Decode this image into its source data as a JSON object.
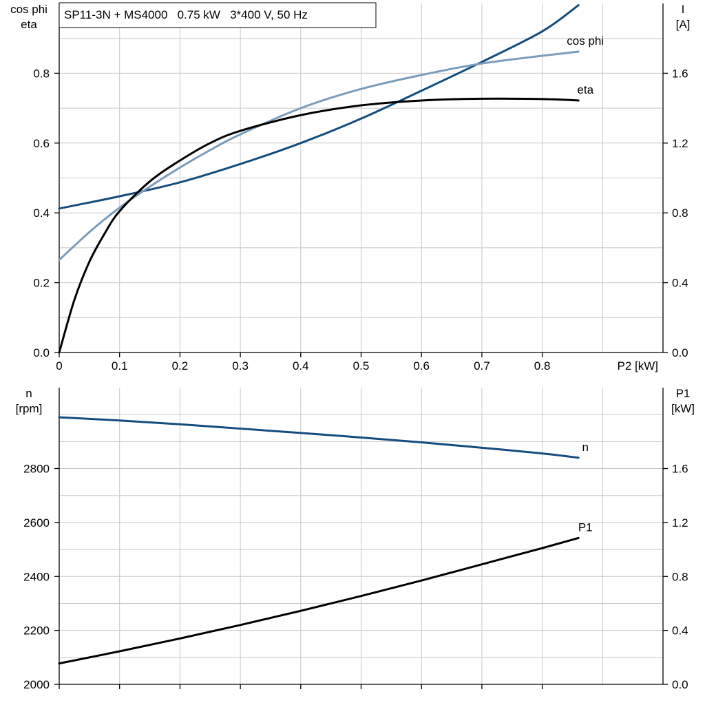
{
  "chart_data": [
    {
      "type": "line",
      "title": "SP11-3N + MS4000   0.75 kW   3*400 V, 50 Hz",
      "xlabel": "P2 [kW]",
      "xlim": [
        0,
        1.0
      ],
      "xticks": [
        0,
        0.1,
        0.2,
        0.3,
        0.4,
        0.5,
        0.6,
        0.7,
        0.8
      ],
      "xtick_labels": [
        "0",
        "0.1",
        "0.2",
        "0.3",
        "0.4",
        "0.5",
        "0.6",
        "0.7",
        "0.8"
      ],
      "ylabel_left_line1": "cos phi",
      "ylabel_left_line2": "eta",
      "ylim_left": [
        0,
        1.0
      ],
      "yticks_left": [
        0,
        0.2,
        0.4,
        0.6,
        0.8
      ],
      "ytick_labels_left": [
        "0.0",
        "0.2",
        "0.4",
        "0.6",
        "0.8"
      ],
      "ylabel_right_line1": "I",
      "ylabel_right_line2": "[A]",
      "ylim_right": [
        0,
        2.0
      ],
      "yticks_right": [
        0,
        0.4,
        0.8,
        1.2,
        1.6
      ],
      "ytick_labels_right": [
        "0.0",
        "0.4",
        "0.8",
        "1.2",
        "1.6"
      ],
      "grid": true,
      "series": [
        {
          "name": "I",
          "axis": "right",
          "color": "#144c7d",
          "x": [
            0,
            0.1,
            0.2,
            0.3,
            0.4,
            0.5,
            0.6,
            0.7,
            0.8,
            0.86
          ],
          "y": [
            0.825,
            0.895,
            0.975,
            1.08,
            1.2,
            1.34,
            1.5,
            1.665,
            1.84,
            1.99
          ]
        },
        {
          "name": "cos phi",
          "axis": "left",
          "color": "#7b9cbb",
          "x": [
            0,
            0.05,
            0.1,
            0.15,
            0.2,
            0.25,
            0.3,
            0.4,
            0.5,
            0.6,
            0.7,
            0.8,
            0.86
          ],
          "y": [
            0.265,
            0.345,
            0.415,
            0.475,
            0.53,
            0.58,
            0.625,
            0.7,
            0.755,
            0.795,
            0.828,
            0.85,
            0.862
          ]
        },
        {
          "name": "eta",
          "axis": "left",
          "color": "#000000",
          "x": [
            0,
            0.025,
            0.05,
            0.075,
            0.1,
            0.15,
            0.2,
            0.25,
            0.3,
            0.4,
            0.5,
            0.6,
            0.7,
            0.8,
            0.86
          ],
          "y": [
            0,
            0.15,
            0.26,
            0.34,
            0.405,
            0.49,
            0.55,
            0.6,
            0.635,
            0.68,
            0.708,
            0.722,
            0.727,
            0.726,
            0.722
          ]
        }
      ]
    },
    {
      "type": "line",
      "xlim": [
        0,
        1.0
      ],
      "xticks": [
        0,
        0.1,
        0.2,
        0.3,
        0.4,
        0.5,
        0.6,
        0.7,
        0.8
      ],
      "ylabel_left_line1": "n",
      "ylabel_left_line2": "[rpm]",
      "ylim_left": [
        2000,
        3100
      ],
      "yticks_left": [
        2000,
        2200,
        2400,
        2600,
        2800
      ],
      "ytick_labels_left": [
        "2000",
        "2200",
        "2400",
        "2600",
        "2800"
      ],
      "ylabel_right_line1": "P1",
      "ylabel_right_line2": "[kW]",
      "ylim_right": [
        0,
        2.2
      ],
      "yticks_right": [
        0,
        0.4,
        0.8,
        1.2,
        1.6
      ],
      "ytick_labels_right": [
        "0.0",
        "0.4",
        "0.8",
        "1.2",
        "1.6"
      ],
      "grid": true,
      "series": [
        {
          "name": "n",
          "axis": "left",
          "color": "#144c7d",
          "x": [
            0,
            0.1,
            0.2,
            0.3,
            0.4,
            0.5,
            0.6,
            0.7,
            0.8,
            0.86
          ],
          "y": [
            2990,
            2978,
            2964,
            2948,
            2932,
            2915,
            2897,
            2877,
            2856,
            2840
          ]
        },
        {
          "name": "P1",
          "axis": "right",
          "color": "#000000",
          "x": [
            0,
            0.1,
            0.2,
            0.3,
            0.4,
            0.5,
            0.6,
            0.7,
            0.8,
            0.86
          ],
          "y": [
            0.155,
            0.245,
            0.34,
            0.44,
            0.545,
            0.655,
            0.77,
            0.89,
            1.01,
            1.085
          ]
        }
      ]
    }
  ]
}
